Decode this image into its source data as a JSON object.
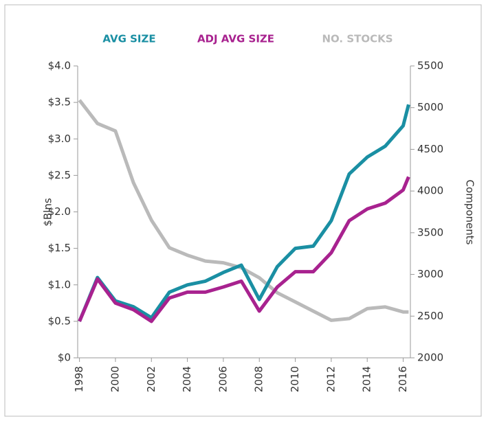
{
  "chart_data": {
    "type": "line",
    "y_label": "$Blns",
    "y2_label": "Components",
    "x": [
      1998,
      1999,
      2000,
      2001,
      2002,
      2003,
      2004,
      2005,
      2006,
      2007,
      2008,
      2009,
      2010,
      2011,
      2012,
      2013,
      2014,
      2015,
      2016,
      2016.3
    ],
    "xlim": [
      1997.9,
      2016.4
    ],
    "xticks": [
      1998,
      2000,
      2002,
      2004,
      2006,
      2008,
      2010,
      2012,
      2014,
      2016
    ],
    "ylim": [
      0,
      4
    ],
    "yticks": [
      {
        "value": 0,
        "label": "$0"
      },
      {
        "value": 0.5,
        "label": "$0.5"
      },
      {
        "value": 1,
        "label": "$1.0"
      },
      {
        "value": 1.5,
        "label": "$1.5"
      },
      {
        "value": 2,
        "label": "$2.0"
      },
      {
        "value": 2.5,
        "label": "$2.5"
      },
      {
        "value": 3,
        "label": "$3.0"
      },
      {
        "value": 3.5,
        "label": "$3.5"
      },
      {
        "value": 4,
        "label": "$4.0"
      }
    ],
    "y2lim": [
      2000,
      5500
    ],
    "y2ticks": [
      2000,
      2500,
      3000,
      3500,
      4000,
      4500,
      5000,
      5500
    ],
    "series": [
      {
        "name": "AVG SIZE",
        "color": "#1a8fa3",
        "values": [
          0.5,
          1.1,
          0.78,
          0.7,
          0.55,
          0.9,
          1.0,
          1.05,
          1.17,
          1.27,
          0.8,
          1.25,
          1.5,
          1.53,
          1.88,
          2.52,
          2.75,
          2.9,
          3.18,
          3.47
        ]
      },
      {
        "name": "ADJ AVG SIZE",
        "color": "#a8228f",
        "values": [
          0.5,
          1.08,
          0.75,
          0.66,
          0.5,
          0.82,
          0.9,
          0.9,
          0.97,
          1.05,
          0.64,
          0.97,
          1.18,
          1.18,
          1.44,
          1.88,
          2.04,
          2.12,
          2.3,
          2.48
        ]
      },
      {
        "name": "NO. STOCKS",
        "color": "#bababa",
        "axis": "y2",
        "values": [
          5090,
          4810,
          4720,
          4100,
          3650,
          3320,
          3230,
          3160,
          3140,
          3080,
          2960,
          2780,
          2670,
          2560,
          2450,
          2470,
          2590,
          2610,
          2550,
          2550
        ]
      }
    ]
  }
}
